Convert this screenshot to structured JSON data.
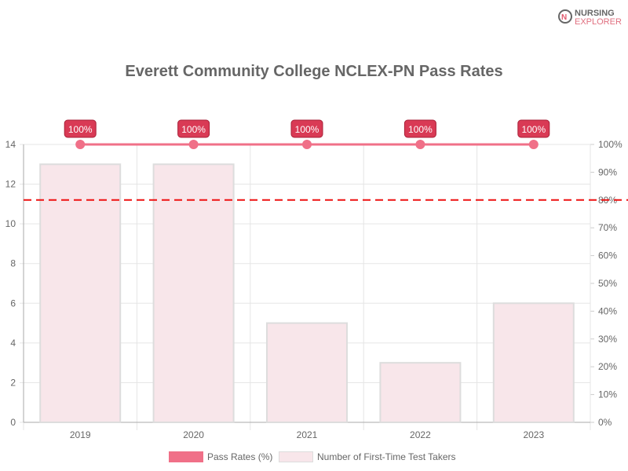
{
  "logo": {
    "line1": "NURSING",
    "line2": "EXPLORER"
  },
  "chart_data": {
    "type": "bar+line",
    "title": "Everett Community College NCLEX-PN Pass Rates",
    "categories": [
      "2019",
      "2020",
      "2021",
      "2022",
      "2023"
    ],
    "series": [
      {
        "name": "Pass Rates (%)",
        "type": "line",
        "axis": "right",
        "values": [
          100,
          100,
          100,
          100,
          100
        ],
        "color": "#f07088",
        "data_labels": [
          "100%",
          "100%",
          "100%",
          "100%",
          "100%"
        ]
      },
      {
        "name": "Number of First-Time Test Takers",
        "type": "bar",
        "axis": "left",
        "values": [
          13,
          13,
          5,
          3,
          6
        ],
        "color": "#f8e6ea"
      }
    ],
    "left_axis": {
      "ylim": [
        0,
        14
      ],
      "ticks": [
        "0",
        "2",
        "4",
        "6",
        "8",
        "10",
        "12",
        "14"
      ]
    },
    "right_axis": {
      "ylim": [
        0,
        100
      ],
      "ticks": [
        "0%",
        "10%",
        "20%",
        "30%",
        "40%",
        "50%",
        "60%",
        "70%",
        "80%",
        "90%",
        "100%"
      ]
    },
    "reference_line": {
      "value": 80,
      "axis": "right",
      "color": "#ee1111",
      "style": "dashed"
    },
    "grid": true,
    "legend": "bottom"
  }
}
